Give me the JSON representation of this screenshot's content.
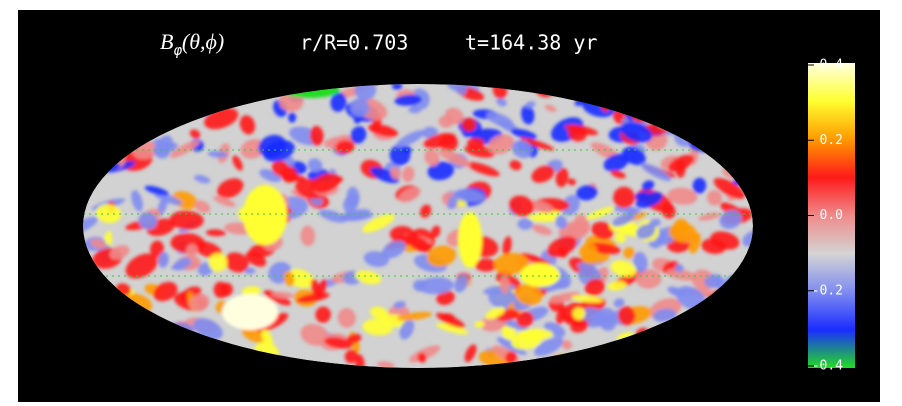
{
  "chart_data": {
    "type": "heatmap",
    "title_symbol": "B",
    "title_subscript": "φ",
    "title_args": "(θ,ϕ)",
    "radius": "r/R=0.703",
    "time": "t=164.38 yr",
    "colorbar": {
      "clim": [
        -0.4,
        0.4
      ],
      "ticks": [
        -0.4,
        -0.2,
        {
          "value": 0,
          "label": "0.0"
        },
        0.2,
        0.4
      ],
      "colormap": [
        "#22dd22",
        "#1a2cff",
        "#7f8cf0",
        "#d4d4d4",
        "#f08a8a",
        "#ff1a1a",
        "#ff9a00",
        "#ffff30",
        "#ffffe0"
      ]
    }
  }
}
